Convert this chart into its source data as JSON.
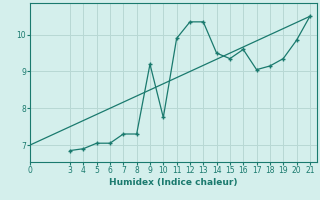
{
  "xlabel": "Humidex (Indice chaleur)",
  "ylabel": "",
  "bg_color": "#d4efec",
  "grid_color": "#b8d8d4",
  "line_color": "#1a7a6e",
  "curve_x": [
    3,
    4,
    5,
    6,
    7,
    8,
    9,
    10,
    11,
    12,
    13,
    14,
    15,
    16,
    17,
    18,
    19,
    20,
    21
  ],
  "curve_y": [
    6.85,
    6.9,
    7.05,
    7.05,
    7.3,
    7.3,
    9.2,
    7.75,
    9.9,
    10.35,
    10.35,
    9.5,
    9.35,
    9.6,
    9.05,
    9.15,
    9.35,
    9.85,
    10.5
  ],
  "line_x": [
    0,
    21
  ],
  "line_y": [
    7.0,
    10.5
  ],
  "xlim": [
    0,
    21.5
  ],
  "ylim": [
    6.55,
    10.85
  ],
  "yticks": [
    7,
    8,
    9,
    10
  ],
  "xticks": [
    0,
    3,
    4,
    5,
    6,
    7,
    8,
    9,
    10,
    11,
    12,
    13,
    14,
    15,
    16,
    17,
    18,
    19,
    20,
    21
  ]
}
